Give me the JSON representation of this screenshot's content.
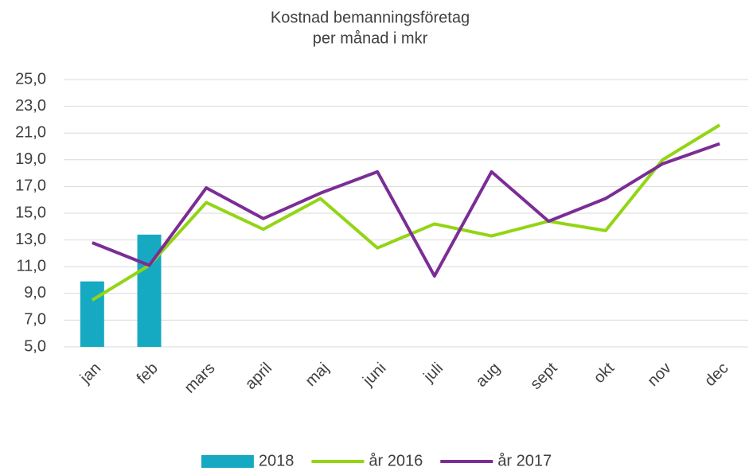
{
  "chart_data": {
    "type": "bar",
    "title": [
      "Kostnad bemanningsföretag",
      "per månad i mkr"
    ],
    "categories": [
      "jan",
      "feb",
      "mars",
      "april",
      "maj",
      "juni",
      "juli",
      "aug",
      "sept",
      "okt",
      "nov",
      "dec"
    ],
    "series": [
      {
        "name": "2018",
        "type": "bar",
        "color": "#16aac2",
        "values": [
          9.9,
          13.4,
          null,
          null,
          null,
          null,
          null,
          null,
          null,
          null,
          null,
          null
        ]
      },
      {
        "name": "år 2016",
        "type": "line",
        "color": "#92d514",
        "values": [
          8.5,
          11.1,
          15.8,
          13.8,
          16.1,
          12.4,
          14.2,
          13.3,
          14.4,
          13.7,
          19.0,
          21.6
        ]
      },
      {
        "name": "år 2017",
        "type": "line",
        "color": "#7b2d96",
        "values": [
          12.8,
          11.1,
          16.9,
          14.6,
          16.5,
          18.1,
          10.3,
          18.1,
          14.4,
          16.1,
          18.7,
          20.2
        ]
      }
    ],
    "ylim": [
      5,
      25
    ],
    "yticks": [
      {
        "value": 5,
        "label": "5,0"
      },
      {
        "value": 7,
        "label": "7,0"
      },
      {
        "value": 9,
        "label": "9,0"
      },
      {
        "value": 11,
        "label": "11,0"
      },
      {
        "value": 13,
        "label": "13,0"
      },
      {
        "value": 15,
        "label": "15,0"
      },
      {
        "value": 17,
        "label": "17,0"
      },
      {
        "value": 19,
        "label": "19,0"
      },
      {
        "value": 21,
        "label": "21,0"
      },
      {
        "value": 23,
        "label": "23,0"
      },
      {
        "value": 25,
        "label": "25,0"
      }
    ],
    "grid": true,
    "legend": "bottom"
  }
}
